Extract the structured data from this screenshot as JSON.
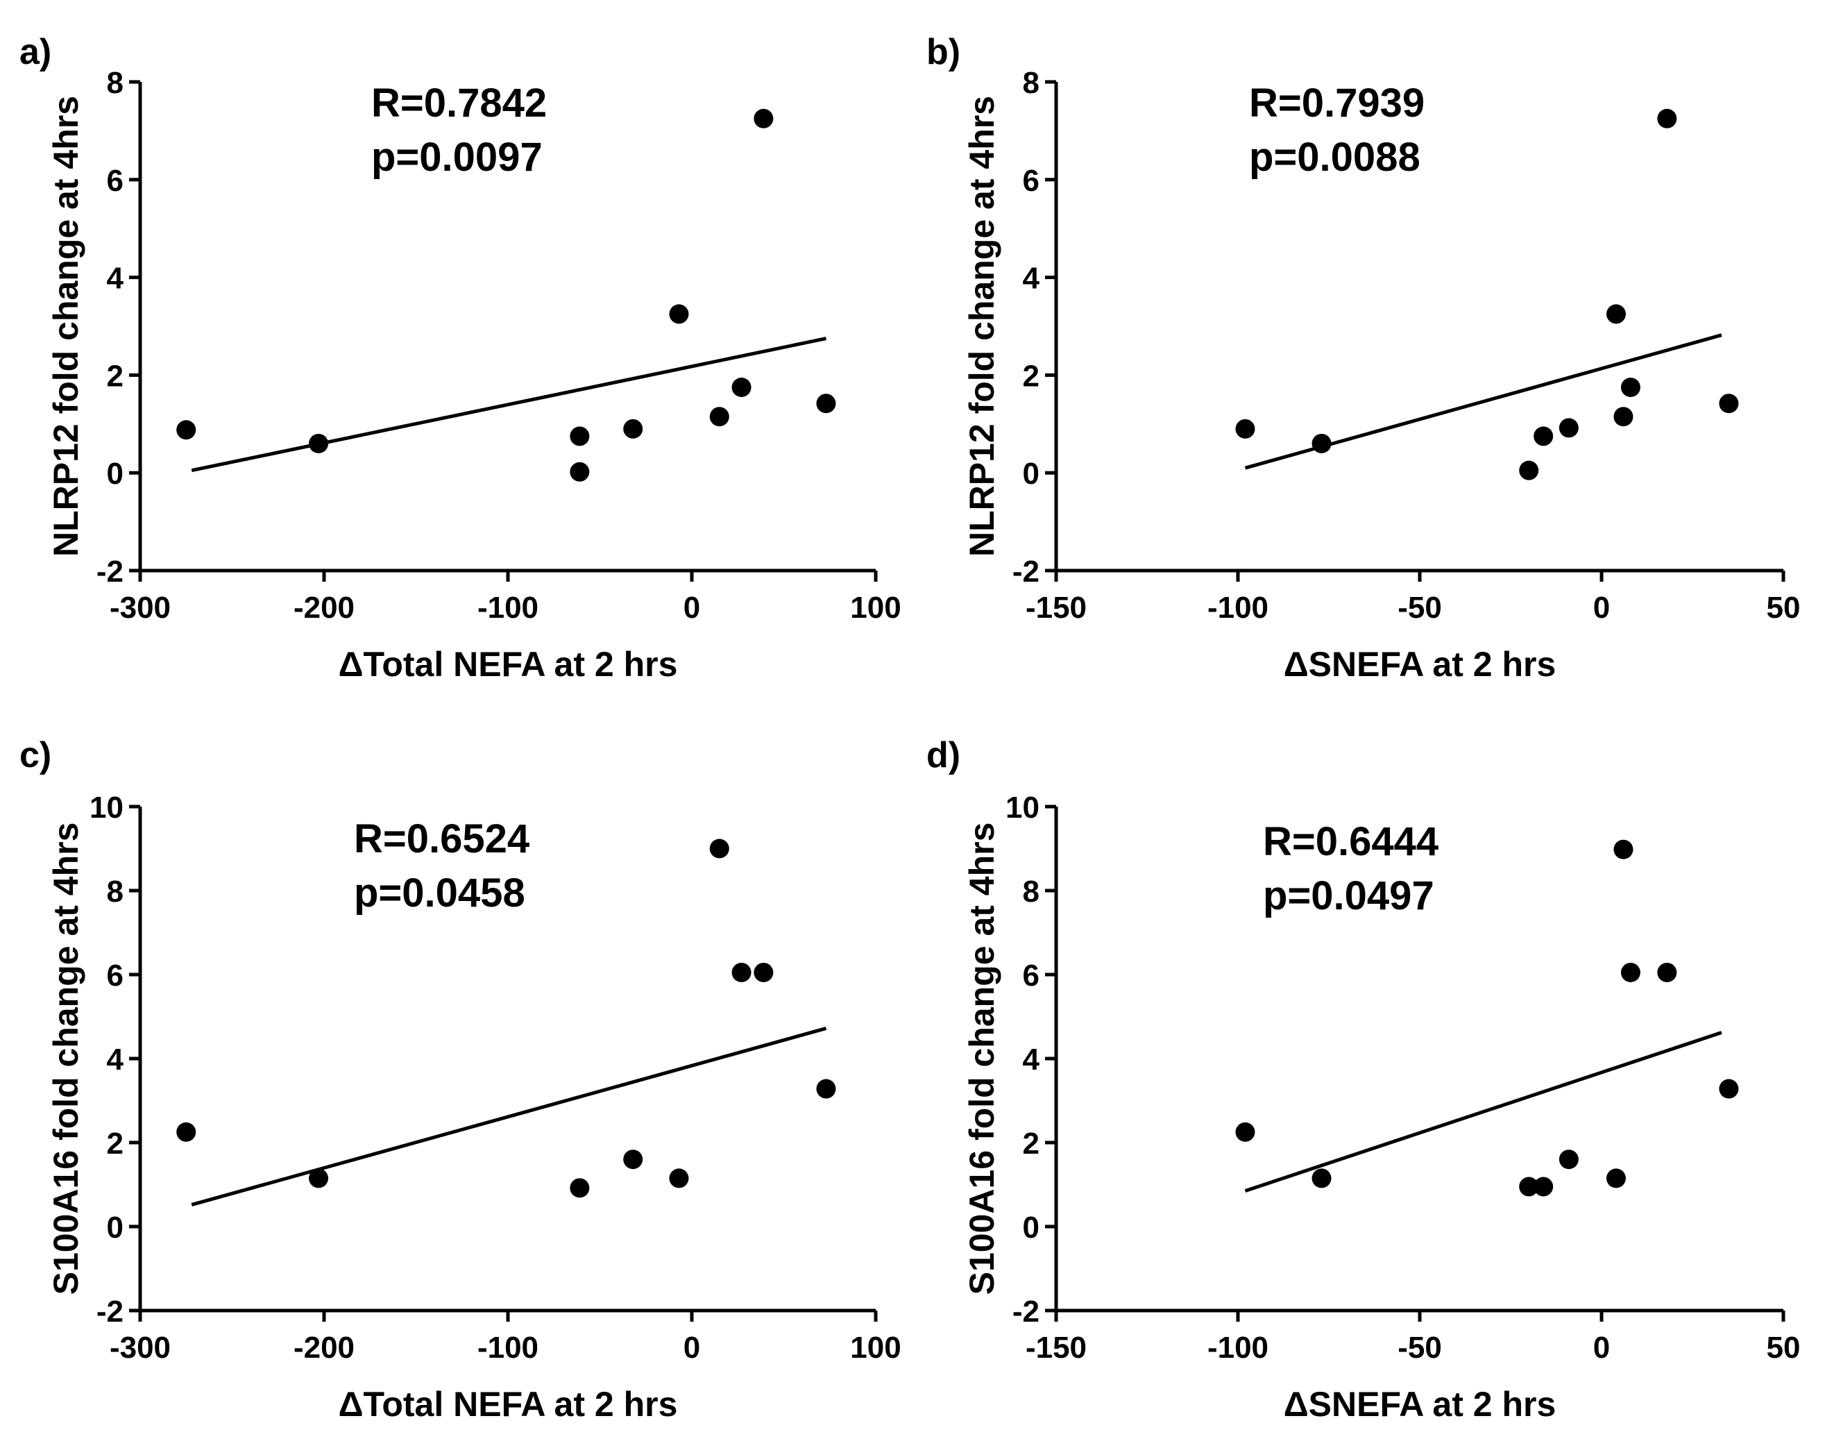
{
  "figure_theme": {
    "ink": "#000000",
    "background": "#ffffff"
  },
  "chart_data": [
    {
      "id": "a",
      "type": "scatter",
      "panel_label": "a)",
      "xlabel": "ΔTotal NEFA at 2 hrs",
      "ylabel": "NLRP12 fold change at 4hrs",
      "xlim": [
        -300,
        100
      ],
      "ylim": [
        -2,
        8
      ],
      "xticks": [
        -300,
        -200,
        -100,
        0,
        100
      ],
      "yticks": [
        -2,
        0,
        2,
        4,
        6,
        8
      ],
      "stat_r": "R=0.7842",
      "stat_p": "p=0.0097",
      "points": [
        {
          "x": -275,
          "y": 0.88
        },
        {
          "x": -203,
          "y": 0.6
        },
        {
          "x": -61,
          "y": 0.75
        },
        {
          "x": -61,
          "y": 0.02
        },
        {
          "x": -32,
          "y": 0.9
        },
        {
          "x": -7,
          "y": 3.25
        },
        {
          "x": 15,
          "y": 1.15
        },
        {
          "x": 27,
          "y": 1.75
        },
        {
          "x": 39,
          "y": 7.25
        },
        {
          "x": 73,
          "y": 1.42
        }
      ],
      "fit_line": {
        "x": [
          -272,
          73
        ],
        "y": [
          0.05,
          2.75
        ]
      }
    },
    {
      "id": "b",
      "type": "scatter",
      "panel_label": "b)",
      "xlabel": "ΔSNEFA at 2 hrs",
      "ylabel": "NLRP12 fold change at 4hrs",
      "xlim": [
        -150,
        50
      ],
      "ylim": [
        -2,
        8
      ],
      "xticks": [
        -150,
        -100,
        -50,
        0,
        50
      ],
      "yticks": [
        -2,
        0,
        2,
        4,
        6,
        8
      ],
      "stat_r": "R=0.7939",
      "stat_p": "p=0.0088",
      "points": [
        {
          "x": -98,
          "y": 0.9
        },
        {
          "x": -77,
          "y": 0.6
        },
        {
          "x": -20,
          "y": 0.05
        },
        {
          "x": -16,
          "y": 0.75
        },
        {
          "x": -9,
          "y": 0.92
        },
        {
          "x": 4,
          "y": 3.25
        },
        {
          "x": 6,
          "y": 1.15
        },
        {
          "x": 8,
          "y": 1.75
        },
        {
          "x": 18,
          "y": 7.25
        },
        {
          "x": 35,
          "y": 1.42
        }
      ],
      "fit_line": {
        "x": [
          -98,
          33
        ],
        "y": [
          0.1,
          2.82
        ]
      }
    },
    {
      "id": "c",
      "type": "scatter",
      "panel_label": "c)",
      "xlabel": "ΔTotal NEFA at 2 hrs",
      "ylabel": "S100A16 fold change at 4hrs",
      "xlim": [
        -300,
        100
      ],
      "ylim": [
        -2,
        10
      ],
      "xticks": [
        -300,
        -200,
        -100,
        0,
        100
      ],
      "yticks": [
        -2,
        0,
        2,
        4,
        6,
        8,
        10
      ],
      "stat_r": "R=0.6524",
      "stat_p": "p=0.0458",
      "points": [
        {
          "x": -275,
          "y": 2.25
        },
        {
          "x": -203,
          "y": 1.15
        },
        {
          "x": -61,
          "y": 0.92
        },
        {
          "x": -32,
          "y": 1.6
        },
        {
          "x": -7,
          "y": 1.15
        },
        {
          "x": 15,
          "y": 9.0
        },
        {
          "x": 27,
          "y": 6.05
        },
        {
          "x": 39,
          "y": 6.05
        },
        {
          "x": 73,
          "y": 3.28
        }
      ],
      "fit_line": {
        "x": [
          -272,
          73
        ],
        "y": [
          0.52,
          4.72
        ]
      }
    },
    {
      "id": "d",
      "type": "scatter",
      "panel_label": "d)",
      "xlabel": "ΔSNEFA at 2 hrs",
      "ylabel": "S100A16 fold change at 4hrs",
      "xlim": [
        -150,
        50
      ],
      "ylim": [
        -2,
        10
      ],
      "xticks": [
        -150,
        -100,
        -50,
        0,
        50
      ],
      "yticks": [
        -2,
        0,
        2,
        4,
        6,
        8,
        10
      ],
      "stat_r": "R=0.6444",
      "stat_p": "p=0.0497",
      "points": [
        {
          "x": -98,
          "y": 2.25
        },
        {
          "x": -77,
          "y": 1.15
        },
        {
          "x": -20,
          "y": 0.95
        },
        {
          "x": -16,
          "y": 0.95
        },
        {
          "x": -9,
          "y": 1.6
        },
        {
          "x": 4,
          "y": 1.15
        },
        {
          "x": 6,
          "y": 8.98
        },
        {
          "x": 8,
          "y": 6.05
        },
        {
          "x": 18,
          "y": 6.05
        },
        {
          "x": 35,
          "y": 3.28
        }
      ],
      "fit_line": {
        "x": [
          -98,
          33
        ],
        "y": [
          0.85,
          4.62
        ]
      }
    }
  ]
}
